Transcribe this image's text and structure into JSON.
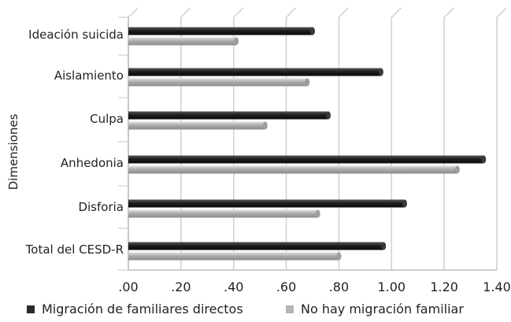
{
  "chart_data": {
    "type": "bar",
    "orientation": "horizontal",
    "categories": [
      "Ideación suicida",
      "Aislamiento",
      "Culpa",
      "Anhedonia",
      "Disforia",
      "Total del CESD-R"
    ],
    "series": [
      {
        "name": "Migración de familiares directos",
        "color": "#2b2b2b",
        "values": [
          0.7,
          0.96,
          0.76,
          1.35,
          1.05,
          0.97
        ]
      },
      {
        "name": "No hay migración familiar",
        "color": "#b5b5b5",
        "values": [
          0.41,
          0.68,
          0.52,
          1.25,
          0.72,
          0.8
        ]
      }
    ],
    "xlim": [
      0,
      1.4
    ],
    "xticks": [
      ".00",
      ".20",
      ".40",
      ".60",
      ".80",
      "1.00",
      "1.20",
      "1.40"
    ],
    "ylabel": "Dimensiones",
    "xlabel": "",
    "grid": true,
    "legend_position": "bottom"
  }
}
